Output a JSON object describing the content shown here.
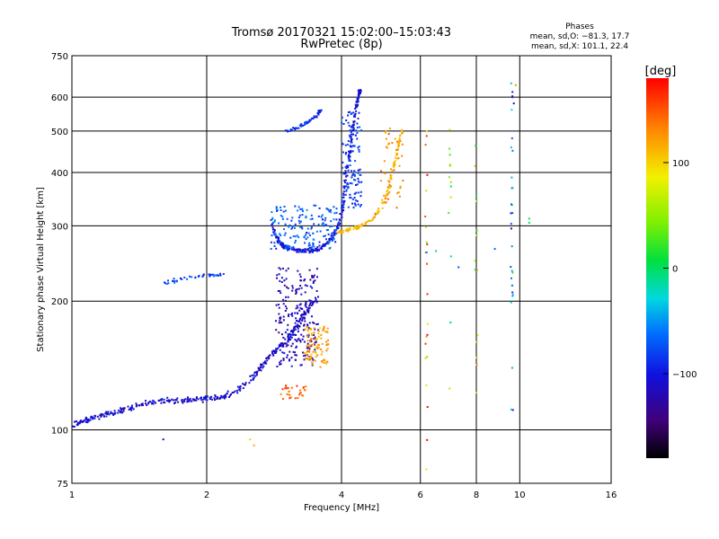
{
  "chart_data": {
    "type": "scatter",
    "title": "Tromsø 20170321 15:02:00–15:03:43",
    "subtitle": "RwPretec (8p)",
    "xlabel": "Frequency [MHz]",
    "ylabel": "Stationary phase Virtual Height [km]",
    "x_scale": "log",
    "y_scale": "log",
    "xlim": [
      1,
      16
    ],
    "ylim": [
      75,
      750
    ],
    "x_ticks": [
      1,
      2,
      4,
      6,
      8,
      10,
      16
    ],
    "x_tick_labels": [
      "1",
      "2",
      "4",
      "6",
      "8",
      "10",
      "16"
    ],
    "y_ticks": [
      75,
      100,
      200,
      300,
      400,
      500,
      600,
      750
    ],
    "y_tick_labels": [
      "75",
      "100",
      "200",
      "300",
      "400",
      "500",
      "600",
      "750"
    ],
    "x_grid": [
      2,
      4,
      6,
      8,
      10
    ],
    "y_grid": [
      100,
      200,
      300,
      400,
      500,
      600
    ],
    "grid": true,
    "phase_stats": {
      "title": "Phases",
      "line1": "mean, sd,O: −81.3, 17.7",
      "line2": "mean, sd,X: 101.1, 22.4"
    },
    "colorbar": {
      "label": "[deg]",
      "range": [
        -180,
        180
      ],
      "ticks": [
        100,
        0,
        -100
      ],
      "tick_labels": [
        "100",
        "0",
        "−100"
      ]
    },
    "traces": [
      {
        "x": [
          1.0,
          1.05,
          1.1,
          1.15,
          1.2,
          1.27,
          1.33,
          1.4,
          1.5,
          1.6,
          1.7,
          1.8,
          1.9,
          2.0,
          2.1,
          2.2,
          2.35,
          2.5,
          2.6,
          2.7,
          2.8,
          2.9,
          3.0,
          3.1,
          3.2,
          3.3,
          3.4,
          3.5
        ],
        "y": [
          103,
          104,
          106,
          108,
          109,
          110,
          112,
          114,
          116,
          117,
          117,
          117,
          118,
          118,
          119,
          120,
          124,
          130,
          137,
          144,
          150,
          156,
          160,
          168,
          176,
          185,
          194,
          203
        ],
        "phase": -110,
        "spread": 0.016
      },
      {
        "x": [
          2.8,
          2.85,
          2.9,
          2.95,
          3.0,
          3.1,
          3.2,
          3.3,
          3.4,
          3.5,
          3.6,
          3.7,
          3.8,
          3.9,
          4.0,
          4.05,
          4.1
        ],
        "y": [
          305,
          283,
          275,
          270,
          267,
          265,
          263,
          262,
          263,
          264,
          267,
          272,
          280,
          292,
          315,
          350,
          400
        ],
        "phase": -100,
        "spread": 0.012
      },
      {
        "x": [
          4.1,
          4.15,
          4.2,
          4.25,
          4.3,
          4.33,
          4.36,
          4.38,
          4.4
        ],
        "y": [
          400,
          430,
          470,
          510,
          550,
          580,
          600,
          615,
          625
        ],
        "phase": -108,
        "spread": 0.01
      },
      {
        "x": [
          3.9,
          4.1,
          4.3,
          4.5,
          4.7,
          4.9,
          5.05,
          5.15,
          5.25,
          5.35,
          5.45
        ],
        "y": [
          290,
          292,
          296,
          302,
          312,
          330,
          355,
          385,
          420,
          460,
          500
        ],
        "phase": 112,
        "spread": 0.01
      },
      {
        "x": [
          1.6,
          1.75,
          2.0,
          2.2
        ],
        "y": [
          220,
          225,
          230,
          230
        ],
        "phase": -80,
        "spread": 0.01
      },
      {
        "x": [
          3.0,
          3.2,
          3.35,
          3.5,
          3.6
        ],
        "y": [
          500,
          510,
          525,
          540,
          560
        ],
        "phase": -90,
        "spread": 0.01
      }
    ],
    "clouds": [
      {
        "x": [
          2.85,
          3.55
        ],
        "y": [
          140,
          240
        ],
        "n": 220,
        "phase": -118
      },
      {
        "x": [
          2.75,
          3.9
        ],
        "y": [
          265,
          335
        ],
        "n": 160,
        "phase": -70
      },
      {
        "x": [
          3.3,
          3.75
        ],
        "y": [
          140,
          175
        ],
        "n": 90,
        "phase": 120
      },
      {
        "x": [
          2.9,
          3.35
        ],
        "y": [
          118,
          127
        ],
        "n": 30,
        "phase": 150
      },
      {
        "x": [
          4.0,
          4.45
        ],
        "y": [
          330,
          560
        ],
        "n": 120,
        "phase": -85
      },
      {
        "x": [
          4.9,
          5.5
        ],
        "y": [
          330,
          520
        ],
        "n": 40,
        "phase": 130
      }
    ],
    "sparse_columns": [
      {
        "x": 6.2,
        "y": [
          78,
          590
        ],
        "n": 22,
        "phase": 120
      },
      {
        "x": 7.0,
        "y": [
          80,
          510
        ],
        "n": 14,
        "phase": 40
      },
      {
        "x": 8.0,
        "y": [
          110,
          520
        ],
        "n": 14,
        "phase": 80
      },
      {
        "x": 9.6,
        "y": [
          100,
          650
        ],
        "n": 30,
        "phase": -60
      }
    ],
    "extra_points": [
      {
        "x": 10.5,
        "y": 305,
        "phase": 0
      },
      {
        "x": 10.5,
        "y": 312,
        "phase": 20
      },
      {
        "x": 9.8,
        "y": 640,
        "phase": 120
      },
      {
        "x": 9.7,
        "y": 580,
        "phase": -100
      },
      {
        "x": 2.55,
        "y": 92,
        "phase": 140
      },
      {
        "x": 2.5,
        "y": 95,
        "phase": 60
      },
      {
        "x": 1.6,
        "y": 95,
        "phase": -110
      },
      {
        "x": 6.2,
        "y": 260,
        "phase": -40
      },
      {
        "x": 6.5,
        "y": 262,
        "phase": -20
      },
      {
        "x": 7.3,
        "y": 240,
        "phase": -90
      },
      {
        "x": 8.8,
        "y": 265,
        "phase": -60
      }
    ]
  }
}
